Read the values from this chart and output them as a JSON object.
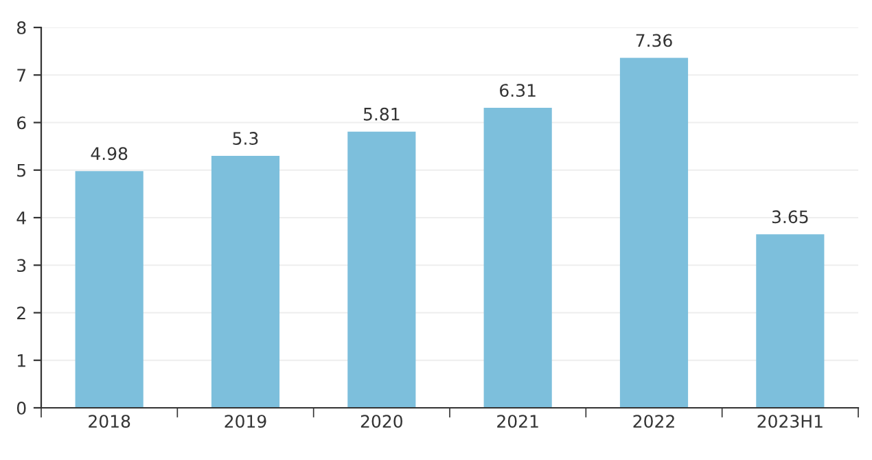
{
  "chart_data": {
    "type": "bar",
    "categories": [
      "2018",
      "2019",
      "2020",
      "2021",
      "2022",
      "2023H1"
    ],
    "values": [
      4.98,
      5.3,
      5.81,
      6.31,
      7.36,
      3.65
    ],
    "color": "#7dbfdc",
    "ylim": [
      0,
      8
    ],
    "yticks": [
      0,
      1,
      2,
      3,
      4,
      5,
      6,
      7,
      8
    ],
    "grid": "y",
    "data_labels": true
  }
}
